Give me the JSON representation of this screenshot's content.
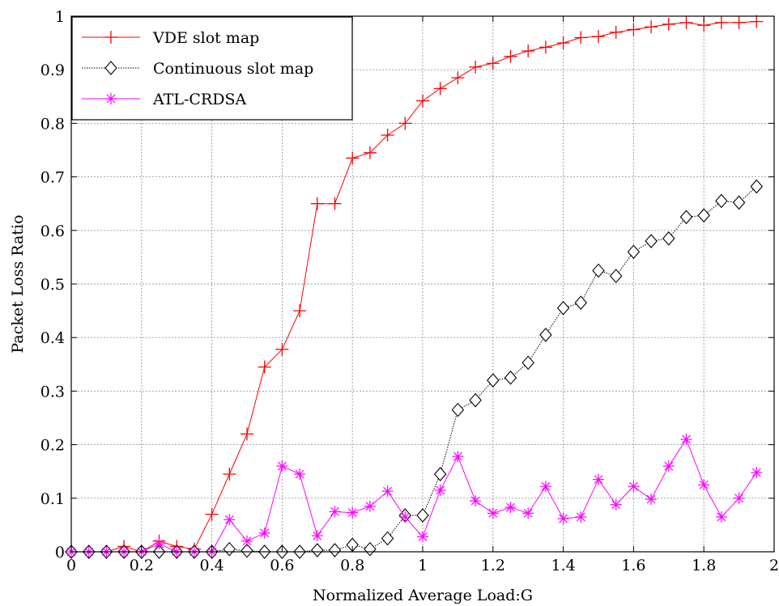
{
  "chart_data": {
    "type": "line",
    "title": "",
    "xlabel": "Normalized Average Load:G",
    "ylabel": "Packet Loss Ratio",
    "xlim": [
      0,
      2
    ],
    "ylim": [
      0,
      1
    ],
    "grid": true,
    "legend_position": "top-left",
    "x_ticks": [
      "0",
      "0.2",
      "0.4",
      "0.6",
      "0.8",
      "1",
      "1.2",
      "1.4",
      "1.6",
      "1.8",
      "2"
    ],
    "y_ticks": [
      "0",
      "0.1",
      "0.2",
      "0.3",
      "0.4",
      "0.5",
      "0.6",
      "0.7",
      "0.8",
      "0.9",
      "1"
    ],
    "x": [
      0,
      0.05,
      0.1,
      0.15,
      0.2,
      0.25,
      0.3,
      0.35,
      0.4,
      0.45,
      0.5,
      0.55,
      0.6,
      0.65,
      0.7,
      0.75,
      0.8,
      0.85,
      0.9,
      0.95,
      1.0,
      1.05,
      1.1,
      1.15,
      1.2,
      1.25,
      1.3,
      1.35,
      1.4,
      1.45,
      1.5,
      1.55,
      1.6,
      1.65,
      1.7,
      1.75,
      1.8,
      1.85,
      1.9,
      1.95
    ],
    "series": [
      {
        "name": "VDE slot map",
        "color": "#ff0000",
        "marker": "plus",
        "values": [
          0,
          0,
          0,
          0.01,
          0,
          0.02,
          0.01,
          0.005,
          0.07,
          0.145,
          0.22,
          0.345,
          0.378,
          0.45,
          0.65,
          0.65,
          0.735,
          0.745,
          0.778,
          0.8,
          0.842,
          0.865,
          0.885,
          0.905,
          0.912,
          0.925,
          0.935,
          0.942,
          0.95,
          0.96,
          0.962,
          0.97,
          0.975,
          0.98,
          0.985,
          0.988,
          0.983,
          0.988,
          0.988,
          0.99
        ]
      },
      {
        "name": "Continuous slot map",
        "color": "#000000",
        "marker": "diamond",
        "values": [
          0,
          0,
          0,
          0,
          0,
          0,
          0,
          0,
          0,
          0.005,
          0.002,
          0,
          0,
          0,
          0.003,
          0.003,
          0.013,
          0.005,
          0.025,
          0.068,
          0.068,
          0.145,
          0.265,
          0.283,
          0.32,
          0.325,
          0.353,
          0.405,
          0.455,
          0.465,
          0.525,
          0.515,
          0.56,
          0.58,
          0.585,
          0.625,
          0.628,
          0.655,
          0.652,
          0.682
        ]
      },
      {
        "name": "ATL-CRDSA",
        "color": "#ff00ff",
        "marker": "asterisk",
        "values": [
          0,
          0,
          0,
          0,
          0,
          0.015,
          0,
          0,
          0,
          0.06,
          0.02,
          0.035,
          0.16,
          0.145,
          0.03,
          0.075,
          0.073,
          0.085,
          0.113,
          0.065,
          0.028,
          0.115,
          0.178,
          0.095,
          0.072,
          0.083,
          0.072,
          0.122,
          0.062,
          0.065,
          0.135,
          0.088,
          0.122,
          0.098,
          0.16,
          0.21,
          0.125,
          0.065,
          0.1,
          0.148
        ]
      }
    ]
  }
}
